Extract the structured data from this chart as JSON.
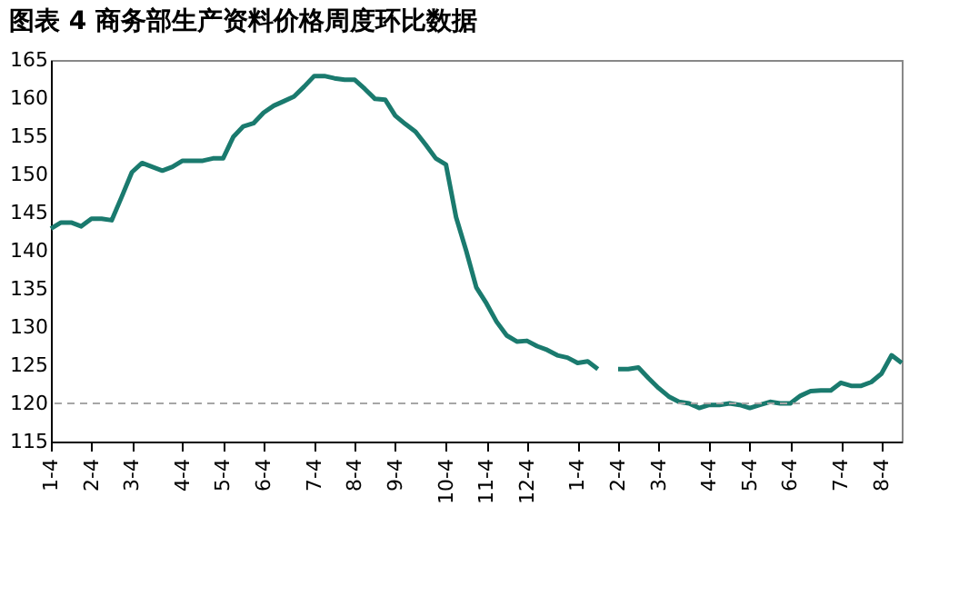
{
  "chart_data": {
    "type": "line",
    "title": "图表 4 商务部生产资料价格周度环比数据",
    "categories": [
      "1-4",
      null,
      null,
      null,
      "2-4",
      null,
      null,
      null,
      "3-4",
      null,
      null,
      null,
      null,
      "4-4",
      null,
      null,
      null,
      "5-4",
      null,
      null,
      null,
      "6-4",
      null,
      null,
      null,
      null,
      "7-4",
      null,
      null,
      null,
      "8-4",
      null,
      null,
      null,
      "9-4",
      null,
      null,
      null,
      null,
      "10-4",
      null,
      null,
      null,
      "11-4",
      null,
      null,
      null,
      "12-4",
      null,
      null,
      null,
      null,
      "1-4",
      null,
      null,
      null,
      "2-4",
      null,
      null,
      null,
      "3-4",
      null,
      null,
      null,
      null,
      "4-4",
      null,
      null,
      null,
      "5-4",
      null,
      null,
      null,
      "6-4",
      null,
      null,
      null,
      null,
      "7-4",
      null,
      null,
      null,
      "8-4",
      null,
      null
    ],
    "series": [
      {
        "color": "#1a7a6e",
        "values": [
          142.9,
          143.7,
          143.7,
          143.2,
          144.2,
          144.2,
          144.0,
          147.1,
          150.3,
          151.5,
          151.0,
          150.5,
          151.0,
          151.8,
          151.8,
          151.8,
          152.1,
          152.1,
          154.9,
          156.3,
          156.7,
          158.1,
          159.0,
          159.6,
          160.2,
          161.5,
          162.9,
          162.9,
          162.6,
          162.4,
          162.4,
          161.2,
          159.9,
          159.8,
          157.7,
          156.6,
          155.6,
          153.9,
          152.1,
          151.3,
          144.4,
          140.0,
          135.2,
          133.1,
          130.7,
          128.9,
          128.1,
          128.2,
          127.5,
          127.0,
          126.3,
          126.0,
          125.3,
          125.5,
          124.5,
          null,
          124.5,
          124.5,
          124.7,
          123.3,
          122.0,
          120.9,
          120.2,
          120.0,
          119.4,
          119.8,
          119.8,
          120.0,
          119.8,
          119.4,
          119.8,
          120.2,
          120.0,
          120.0,
          121.0,
          121.6,
          121.7,
          121.7,
          122.7,
          122.3,
          122.3,
          122.8,
          123.9,
          126.3,
          125.3
        ]
      }
    ],
    "ylim": [
      115,
      165
    ],
    "yticks": [
      115,
      120,
      125,
      130,
      135,
      140,
      145,
      150,
      155,
      160,
      165
    ],
    "ref_lines": [
      {
        "axis": "y",
        "value": 120,
        "color": "#a6a6a6",
        "line_style": "dashed"
      }
    ],
    "grid": false,
    "line_style": "solid",
    "marker": "none"
  }
}
